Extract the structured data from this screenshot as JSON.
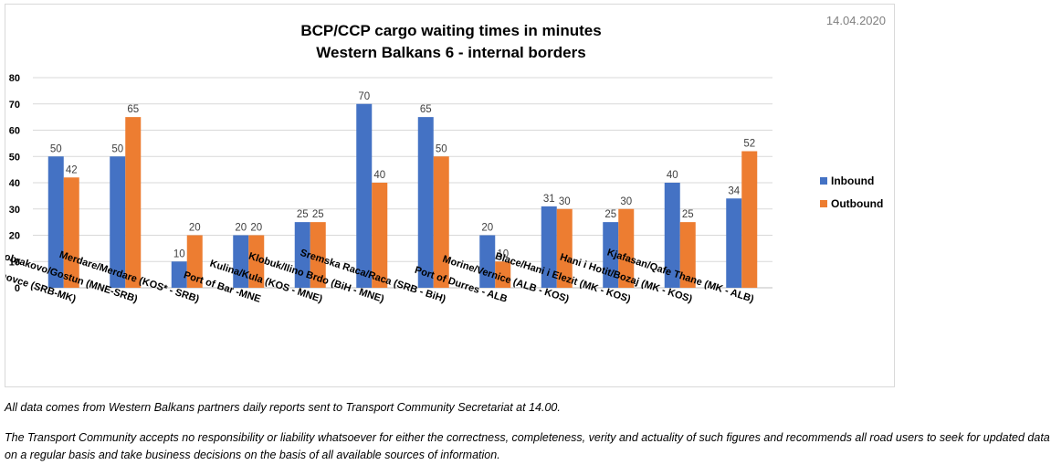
{
  "chart_data": {
    "type": "bar",
    "title_line1": "BCP/CCP cargo waiting times in minutes",
    "title_line2": "Western Balkans 6 - internal borders",
    "date": "14.04.2020",
    "categories": [
      "Presevo/ Tabanovce (SRB-MK)",
      "Dobrakovo/Gostun (MNE-SRB)",
      "Merdare/Merdare (KOS* - SRB)",
      "Port of Bar -MNE",
      "Kulina/Kula (KOS - MNE)",
      "Klobuk/Ilino Brdo (BiH - MNE)",
      "Sremska Raca/Raca (SRB - BiH)",
      "Port of Durres - ALB",
      "Morine/Vernice (ALB - KOS)",
      "Blace/Hani i Elezit (MK - KOS)",
      "Hani i Hotit/Bozaj (MK - KOS)",
      "Kjafasan/Qafe Thane (MK - ALB)"
    ],
    "series": [
      {
        "name": "Inbound",
        "color": "#4472c4",
        "values": [
          50,
          50,
          10,
          20,
          25,
          70,
          65,
          20,
          31,
          25,
          40,
          34
        ]
      },
      {
        "name": "Outbound",
        "color": "#ed7d31",
        "values": [
          42,
          65,
          20,
          20,
          25,
          40,
          50,
          10,
          30,
          30,
          25,
          52
        ]
      }
    ],
    "ylim": [
      0,
      80
    ],
    "yticks": [
      0,
      10,
      20,
      30,
      40,
      50,
      60,
      70,
      80
    ],
    "grid": true,
    "legend_position": "right"
  },
  "notes": {
    "line1": "All data comes from Western Balkans partners daily reports sent to Transport Community Secretariat at 14.00.",
    "line2": "The Transport Community accepts no responsibility or liability whatsoever for either the correctness, completeness, verity and actuality of such figures and recommends all road users to seek for updated data on a regular basis and take business decisions on the basis of all available sources of information."
  }
}
